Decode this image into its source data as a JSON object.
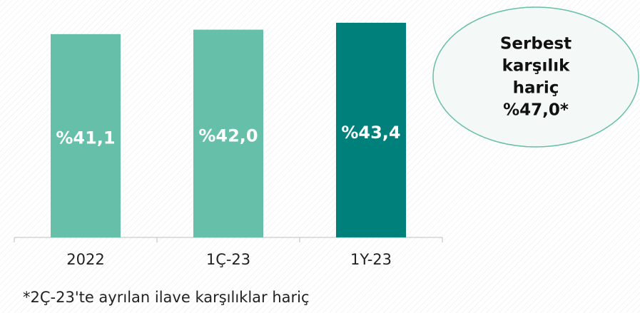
{
  "chart_data": {
    "type": "bar",
    "categories": [
      "2022",
      "1Ç-23",
      "1Y-23"
    ],
    "values": [
      41.1,
      42.0,
      43.4
    ],
    "value_labels": [
      "%41,1",
      "%42,0",
      "%43,4"
    ],
    "colors": [
      "#66bfa8",
      "#66bfa8",
      "#00807a"
    ],
    "ylim": [
      0,
      48
    ],
    "annotation": [
      "Serbest",
      "karşılık",
      "hariç",
      "%47,0*"
    ],
    "footnote": "*2Ç-23'te ayrılan ilave karşılıklar hariç"
  }
}
